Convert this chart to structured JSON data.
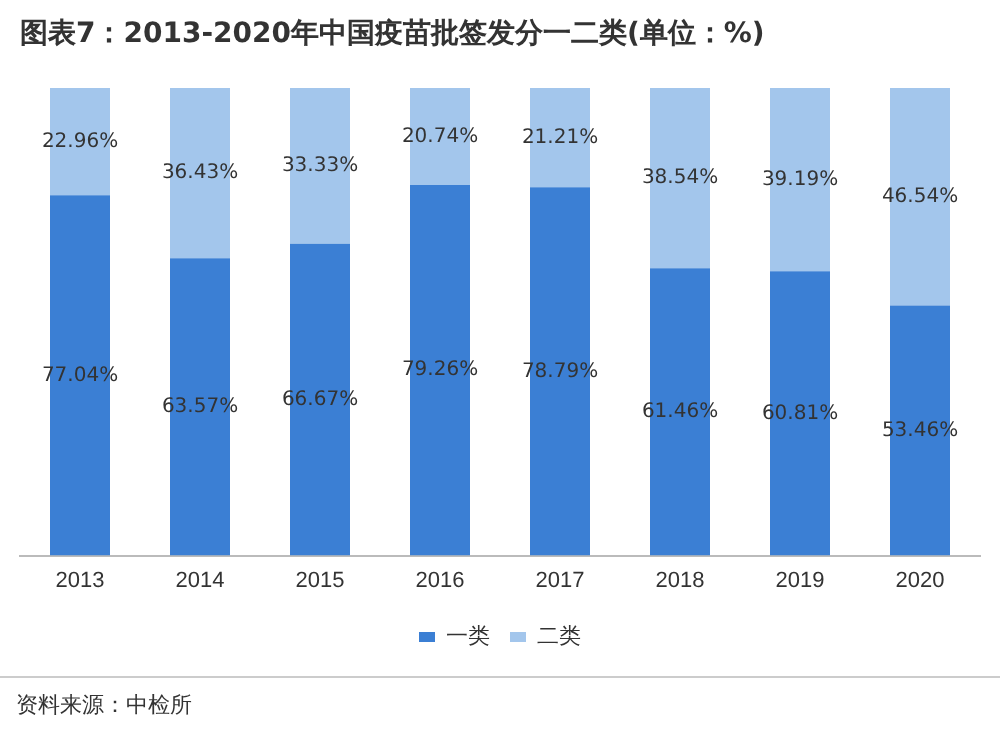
{
  "chart_data": {
    "type": "bar",
    "title": "图表7：2013-2020年中国疫苗批签发分一二类(单位：%)",
    "categories": [
      "2013",
      "2014",
      "2015",
      "2016",
      "2017",
      "2018",
      "2019",
      "2020"
    ],
    "stacked": true,
    "legend": "bottom",
    "grid": false,
    "series": [
      {
        "name": "一类",
        "color": "#3b7fd4",
        "values": [
          77.04,
          63.57,
          66.67,
          79.26,
          78.79,
          61.46,
          60.81,
          53.46
        ],
        "value_labels": [
          "77.04%",
          "63.57%",
          "66.67%",
          "79.26%",
          "78.79%",
          "61.46%",
          "60.81%",
          "53.46%"
        ]
      },
      {
        "name": "二类",
        "color": "#a3c6ec",
        "values": [
          22.96,
          36.43,
          33.33,
          20.74,
          21.21,
          38.54,
          39.19,
          46.54
        ],
        "value_labels": [
          "22.96%",
          "36.43%",
          "33.33%",
          "20.74%",
          "21.21%",
          "38.54%",
          "39.19%",
          "46.54%"
        ]
      }
    ],
    "annotations": [
      "资料来源：中检所"
    ]
  }
}
